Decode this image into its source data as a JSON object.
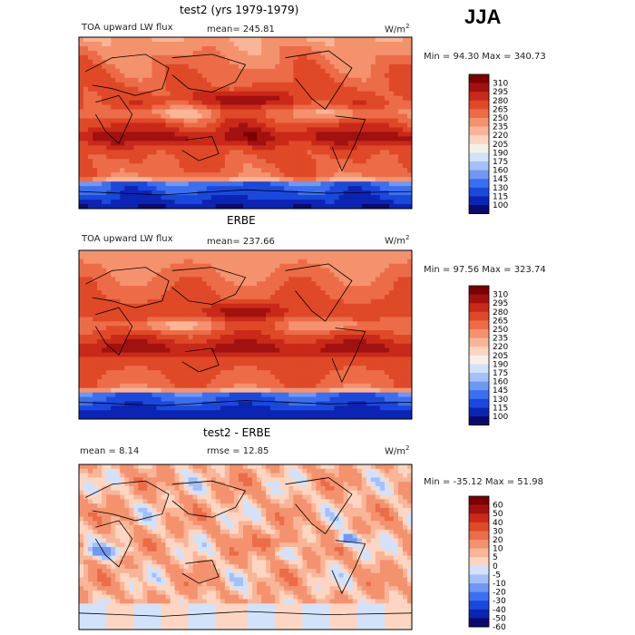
{
  "season": "JJA",
  "colors": {
    "abs_scale": [
      "#0a0a6e",
      "#0b24b4",
      "#1b48dc",
      "#3c6ff0",
      "#6f98f4",
      "#a4c0f8",
      "#d2e2fb",
      "#f7f0ea",
      "#fcd6c2",
      "#f9b597",
      "#f4926e",
      "#ec6c48",
      "#df4927",
      "#c92918",
      "#a11110",
      "#7c0000"
    ],
    "diff_scale": [
      "#0a0a6e",
      "#0b24b4",
      "#1b48dc",
      "#3c6ff0",
      "#6f98f4",
      "#a4c0f8",
      "#d2e2fb",
      "#fcd6c2",
      "#f9b597",
      "#f4926e",
      "#ec6c48",
      "#df4927",
      "#c92918",
      "#a11110",
      "#7c0000"
    ]
  },
  "chart_data": [
    {
      "type": "heatmap",
      "title": "test2 (yrs 1979-1979)",
      "field_label": "TOA upward LW flux",
      "mean_text": "mean= 245.81",
      "units": "W/m",
      "units_sup": "2",
      "minmax_text": "Min =  94.30 Max = 340.73",
      "colorbar_levels": [
        "310",
        "295",
        "280",
        "265",
        "250",
        "235",
        "220",
        "205",
        "190",
        "175",
        "160",
        "145",
        "130",
        "115",
        "100"
      ]
    },
    {
      "type": "heatmap",
      "title": "ERBE",
      "field_label": "TOA upward LW flux",
      "mean_text": "mean= 237.66",
      "units": "W/m",
      "units_sup": "2",
      "minmax_text": "Min =  97.56 Max = 323.74",
      "colorbar_levels": [
        "310",
        "295",
        "280",
        "265",
        "250",
        "235",
        "220",
        "205",
        "190",
        "175",
        "160",
        "145",
        "130",
        "115",
        "100"
      ]
    },
    {
      "type": "heatmap",
      "title": "test2 - ERBE",
      "mean_text": "mean =   8.14",
      "rmse_text": "rmse =  12.85",
      "units": "W/m",
      "units_sup": "2",
      "minmax_text": "Min = -35.12 Max =   51.98",
      "colorbar_levels": [
        "60",
        "50",
        "40",
        "30",
        "20",
        "10",
        "5",
        "0",
        "-5",
        "-10",
        "-20",
        "-30",
        "-40",
        "-50",
        "-60"
      ]
    }
  ]
}
